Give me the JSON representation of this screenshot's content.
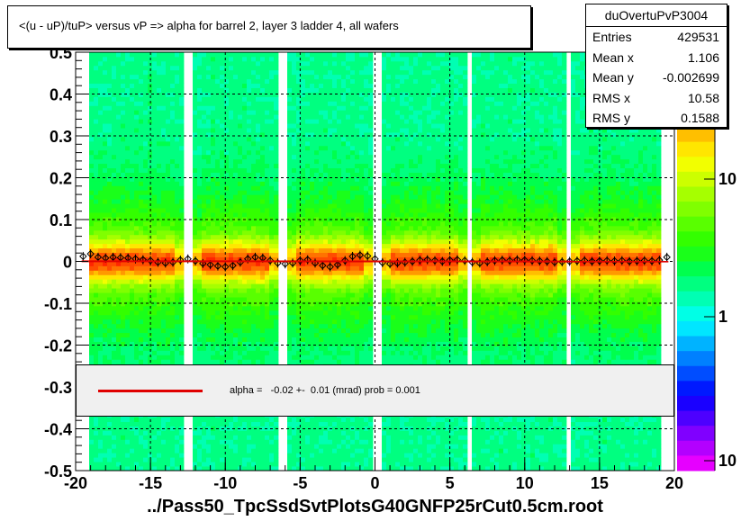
{
  "title": "<(u - uP)/tuP>  versus   vP =>  alpha for barrel 2, layer 3 ladder 4, all wafers",
  "footer": "../Pass50_TpcSsdSvtPlotsG40GNFP25rCut0.5cm.root",
  "stats": {
    "name": "duOvertuPvP3004",
    "rows": [
      {
        "label": "Entries",
        "value": "429531"
      },
      {
        "label": "Mean x",
        "value": "1.106"
      },
      {
        "label": "Mean y",
        "value": "-0.002699"
      },
      {
        "label": "RMS x",
        "value": "10.58"
      },
      {
        "label": "RMS y",
        "value": "0.1588"
      }
    ]
  },
  "legend": {
    "text": "alpha =   -0.02 +-  0.01 (mrad) prob = 0.001",
    "line_color": "#e00000"
  },
  "chart_data": {
    "type": "heatmap",
    "title": "<(u - uP)/tuP>  versus   vP =>  alpha for barrel 2, layer 3 ladder 4, all wafers",
    "xlabel": "",
    "ylabel": "",
    "xlim": [
      -20,
      20
    ],
    "ylim": [
      -0.5,
      0.5
    ],
    "x_ticks": [
      -20,
      -15,
      -10,
      -5,
      0,
      5,
      10,
      15,
      20
    ],
    "x_tick_labels": [
      "-20",
      "-15",
      "-10",
      "-5",
      "0",
      "5",
      "10",
      "15",
      "20"
    ],
    "y_ticks": [
      -0.5,
      -0.4,
      -0.3,
      -0.2,
      -0.1,
      0,
      0.1,
      0.2,
      0.3,
      0.4,
      0.5
    ],
    "y_tick_labels": [
      "-0.5",
      "-0.4",
      "-0.3",
      "-0.2",
      "-0.1",
      "0",
      "0.1",
      "0.2",
      "0.3",
      "0.4",
      "0.5"
    ],
    "grid": true,
    "colorbar": {
      "scale": "log",
      "ticks": [
        "10",
        "1",
        "10"
      ]
    },
    "populated_x_range": [
      -19.2,
      19.2
    ],
    "gap_x_ranges": [
      [
        -12.8,
        -12.3
      ],
      [
        -6.4,
        -5.8
      ],
      [
        -0.1,
        0.4
      ],
      [
        6.2,
        6.6
      ],
      [
        12.8,
        13.2
      ]
    ],
    "profile": {
      "x": [
        -19.5,
        -19,
        -18.5,
        -18,
        -17.5,
        -17,
        -16.5,
        -16,
        -15.5,
        -15,
        -14.5,
        -14,
        -13.5,
        -13,
        -12.5,
        -12,
        -11.5,
        -11,
        -10.5,
        -10,
        -9.5,
        -9,
        -8.5,
        -8,
        -7.5,
        -7,
        -6.5,
        -6,
        -5.5,
        -5,
        -4.5,
        -4,
        -3.5,
        -3,
        -2.5,
        -2,
        -1.5,
        -1,
        -0.5,
        0,
        0.5,
        1,
        1.5,
        2,
        2.5,
        3,
        3.5,
        4,
        4.5,
        5,
        5.5,
        6,
        6.5,
        7,
        7.5,
        8,
        8.5,
        9,
        9.5,
        10,
        10.5,
        11,
        11.5,
        12,
        12.5,
        13,
        13.5,
        14,
        14.5,
        15,
        15.5,
        16,
        16.5,
        17,
        17.5,
        18,
        18.5,
        19,
        19.5
      ],
      "y": [
        0.012,
        0.018,
        0.01,
        0.008,
        0.01,
        0.009,
        0.008,
        0.006,
        0.004,
        0.002,
        -0.002,
        -0.004,
        -0.002,
        0.003,
        0.006,
        0.001,
        -0.005,
        -0.008,
        -0.011,
        -0.013,
        -0.01,
        -0.002,
        0.006,
        0.01,
        0.008,
        0.002,
        -0.004,
        -0.006,
        -0.004,
        0.002,
        0.004,
        -0.004,
        -0.01,
        -0.013,
        -0.008,
        0.002,
        0.012,
        0.015,
        0.013,
        0.006,
        -0.003,
        -0.006,
        -0.004,
        -0.002,
        0.0,
        0.003,
        0.004,
        0.002,
        0.0,
        0.003,
        0.004,
        0.002,
        -0.002,
        -0.004,
        -0.001,
        0.002,
        0.003,
        0.002,
        0.004,
        0.003,
        0.002,
        0.001,
        0.0,
        -0.002,
        -0.001,
        0.0,
        0.001,
        0.002,
        0.0,
        0.001,
        0.002,
        0.001,
        0.002,
        0.0,
        0.001,
        0.002,
        0.001,
        0.003,
        0.01
      ]
    },
    "fit_line": {
      "slope_mrad": -0.02,
      "intercept": 0.0,
      "color": "#e00000"
    }
  }
}
